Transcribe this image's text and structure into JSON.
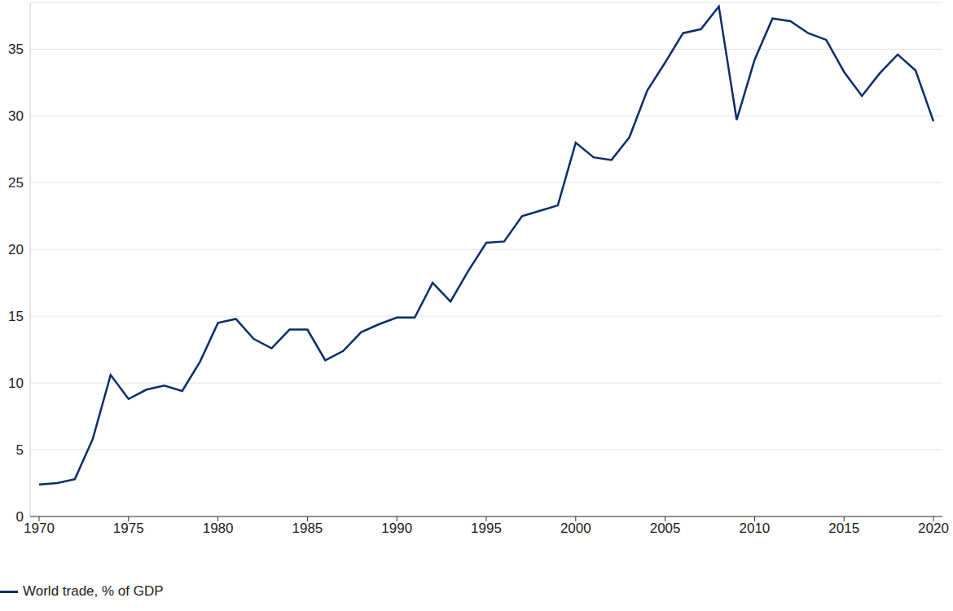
{
  "chart_data": {
    "type": "line",
    "x": [
      1970,
      1971,
      1972,
      1973,
      1974,
      1975,
      1976,
      1977,
      1978,
      1979,
      1980,
      1981,
      1982,
      1983,
      1984,
      1985,
      1986,
      1987,
      1988,
      1989,
      1990,
      1991,
      1992,
      1993,
      1994,
      1995,
      1996,
      1997,
      1998,
      1999,
      2000,
      2001,
      2002,
      2003,
      2004,
      2005,
      2006,
      2007,
      2008,
      2009,
      2010,
      2011,
      2012,
      2013,
      2014,
      2015,
      2016,
      2017,
      2018,
      2019,
      2020
    ],
    "series": [
      {
        "name": "World trade, % of GDP",
        "color": "#0c2c6e",
        "values": [
          2.4,
          2.5,
          2.8,
          5.8,
          10.6,
          8.8,
          9.5,
          9.8,
          9.4,
          11.6,
          14.5,
          14.8,
          13.3,
          12.6,
          14.0,
          14.0,
          11.7,
          12.4,
          13.8,
          14.4,
          14.9,
          14.9,
          17.5,
          16.1,
          18.4,
          20.5,
          20.6,
          22.5,
          22.9,
          23.3,
          28.0,
          26.9,
          26.7,
          28.4,
          31.9,
          34.0,
          36.2,
          36.5,
          38.2,
          29.7,
          34.2,
          37.3,
          37.1,
          36.2,
          35.7,
          33.3,
          31.5,
          33.2,
          34.6,
          33.4,
          29.6
        ]
      }
    ],
    "xlim": [
      1969.5,
      2020.5
    ],
    "xticks": [
      1970,
      1975,
      1980,
      1985,
      1990,
      1995,
      2000,
      2005,
      2010,
      2015,
      2020
    ],
    "ylim": [
      0,
      38.5
    ],
    "yticks": [
      0,
      5,
      10,
      15,
      20,
      25,
      30,
      35
    ],
    "grid": true,
    "legend": "bottom-left"
  }
}
